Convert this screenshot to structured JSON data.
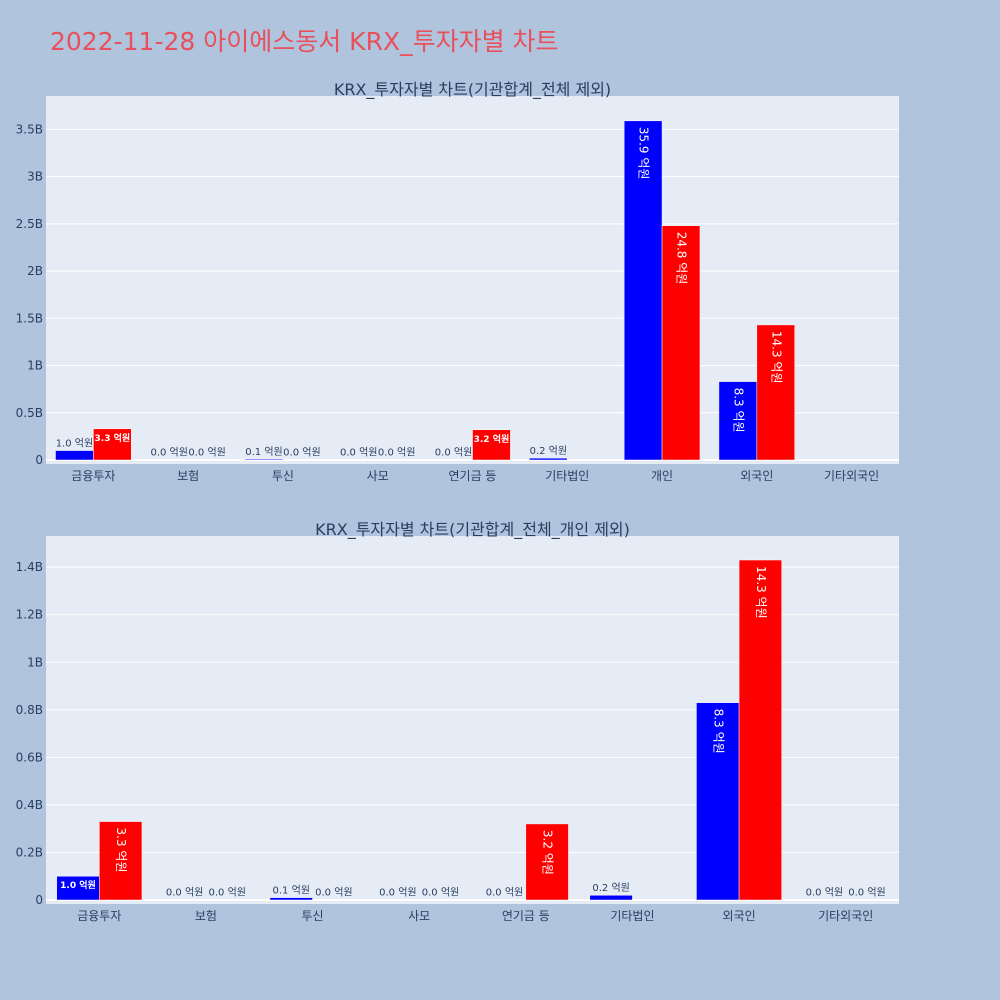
{
  "page": {
    "title": "2022-11-28 아이에스동서 KRX_투자자별 차트"
  },
  "colors": {
    "page_background": "#b0c4de",
    "plot_background": "#e5ecf6",
    "gridline": "#ffffff",
    "title": "#e8505b",
    "series_blue": "#0000ff",
    "series_red": "#ff0000",
    "axis_text": "#2a3f5f"
  },
  "chart_data": [
    {
      "type": "bar",
      "title": "KRX_투자자별 차트(기관합계_전체 제외)",
      "categories": [
        "금융투자",
        "보험",
        "투신",
        "사모",
        "연기금 등",
        "기타법인",
        "개인",
        "외국인",
        "기타외국인"
      ],
      "series": [
        {
          "color": "#0000ff",
          "values": [
            0.1,
            0.0,
            0.01,
            0.0,
            0.0,
            0.02,
            3.59,
            0.83,
            null
          ]
        },
        {
          "color": "#ff0000",
          "values": [
            0.33,
            0.0,
            0.0,
            0.0,
            0.32,
            null,
            2.48,
            1.43,
            null
          ]
        }
      ],
      "labels": [
        [
          "1.0 억원",
          "0.0 억원",
          "0.1 억원",
          "0.0 억원",
          "0.0 억원",
          "0.2 억원",
          "35.9 억원",
          "8.3 억원",
          ""
        ],
        [
          "3.3 억원",
          "0.0 억원",
          "0.0 억원",
          "0.0 억원",
          "3.2 억원",
          "",
          "24.8 억원",
          "14.3 억원",
          ""
        ]
      ],
      "ylim": [
        0,
        3.8
      ],
      "yticks": [
        0,
        0.5,
        1,
        1.5,
        2,
        2.5,
        3,
        3.5
      ],
      "ytick_labels": [
        "0",
        "0.5B",
        "1B",
        "1.5B",
        "2B",
        "2.5B",
        "3B",
        "3.5B"
      ],
      "grid": true
    },
    {
      "type": "bar",
      "title": "KRX_투자자별 차트(기관합계_전체_개인 제외)",
      "categories": [
        "금융투자",
        "보험",
        "투신",
        "사모",
        "연기금 등",
        "기타법인",
        "외국인",
        "기타외국인"
      ],
      "series": [
        {
          "color": "#0000ff",
          "values": [
            0.1,
            0.0,
            0.01,
            0.0,
            0.0,
            0.02,
            0.83,
            0.0
          ]
        },
        {
          "color": "#ff0000",
          "values": [
            0.33,
            0.0,
            0.0,
            0.0,
            0.32,
            null,
            1.43,
            0.0
          ]
        }
      ],
      "labels": [
        [
          "1.0 억원",
          "0.0 억원",
          "0.1 억원",
          "0.0 억원",
          "0.0 억원",
          "0.2 억원",
          "8.3 억원",
          "0.0 억원"
        ],
        [
          "3.3 억원",
          "0.0 억원",
          "0.0 억원",
          "0.0 억원",
          "3.2 억원",
          "",
          "14.3 억원",
          "0.0 억원"
        ]
      ],
      "ylim": [
        0,
        1.51
      ],
      "yticks": [
        0,
        0.2,
        0.4,
        0.6,
        0.8,
        1.0,
        1.2,
        1.4
      ],
      "ytick_labels": [
        "0",
        "0.2B",
        "0.4B",
        "0.6B",
        "0.8B",
        "1B",
        "1.2B",
        "1.4B"
      ],
      "grid": true
    }
  ]
}
